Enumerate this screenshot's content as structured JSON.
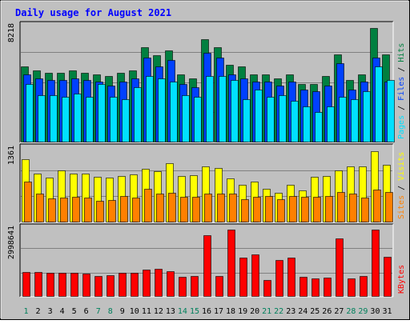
{
  "colors": {
    "background": "#C0C0C0",
    "title": "#0000FF",
    "grid": "#808080",
    "hits": "#008040",
    "files": "#0040FF",
    "pages": "#00E0FF",
    "visits": "#FFFF00",
    "sites": "#FF8000",
    "kbytes": "#FF0000",
    "weekday_label": "#000000",
    "weekend_label": "#00805C"
  },
  "chart_data": {
    "type": "bar",
    "title": "Daily usage for August 2021",
    "categories": [
      "1",
      "2",
      "3",
      "4",
      "5",
      "6",
      "7",
      "8",
      "9",
      "10",
      "11",
      "12",
      "13",
      "14",
      "15",
      "16",
      "17",
      "18",
      "19",
      "20",
      "21",
      "22",
      "23",
      "24",
      "25",
      "26",
      "27",
      "28",
      "29",
      "30",
      "31"
    ],
    "weekend_days": [
      "1",
      "7",
      "8",
      "14",
      "15",
      "21",
      "22",
      "28",
      "29"
    ],
    "grid": true,
    "panels": [
      {
        "id": "hits-files-pages",
        "ymax_label": "8218",
        "ylim": [
          0,
          8218
        ],
        "legend": {
          "names": [
            "Pages",
            "Files",
            "Hits"
          ],
          "separator": " / "
        },
        "series": [
          {
            "name": "Hits",
            "color_key": "hits",
            "values": [
              5230,
              4960,
              4830,
              4830,
              4960,
              4830,
              4700,
              4570,
              4830,
              4960,
              6620,
              6030,
              6360,
              4700,
              4440,
              7150,
              6620,
              5360,
              5230,
              4700,
              4700,
              4440,
              4700,
              4040,
              4040,
              4570,
              6090,
              4300,
              4700,
              7940,
              6090
            ]
          },
          {
            "name": "Files",
            "color_key": "files",
            "values": [
              4700,
              4430,
              4300,
              4300,
              4430,
              4300,
              4170,
              3910,
              4170,
              4430,
              5890,
              5230,
              5700,
              4040,
              3780,
              6230,
              5890,
              4700,
              4440,
              4170,
              4170,
              3910,
              4170,
              3650,
              3520,
              3910,
              5490,
              3650,
              4170,
              5890,
              4170
            ]
          },
          {
            "name": "Pages",
            "color_key": "pages",
            "values": [
              4040,
              3250,
              3250,
              3120,
              3380,
              3120,
              4040,
              3120,
              2990,
              3780,
              4570,
              4440,
              4170,
              3250,
              3120,
              4570,
              4570,
              4300,
              2990,
              3650,
              3120,
              3250,
              2870,
              2470,
              2080,
              2470,
              3120,
              2990,
              3520,
              5230,
              4300
            ]
          }
        ]
      },
      {
        "id": "visits-sites",
        "ymax_label": "1361",
        "ylim": [
          0,
          1361
        ],
        "legend": {
          "names": [
            "Sites",
            "Visits"
          ],
          "separator": " / "
        },
        "series": [
          {
            "name": "Visits",
            "color_key": "visits",
            "values": [
              1125,
              865,
              795,
              920,
              870,
              870,
              810,
              790,
              820,
              860,
              950,
              905,
              1060,
              825,
              835,
              1005,
              970,
              780,
              660,
              725,
              590,
              520,
              670,
              560,
              810,
              830,
              930,
              1005,
              1000,
              1275,
              1030
            ]
          },
          {
            "name": "Sites",
            "color_key": "sites",
            "values": [
              730,
              500,
              420,
              440,
              455,
              440,
              370,
              385,
              465,
              430,
              600,
              500,
              525,
              445,
              445,
              500,
              500,
              500,
              410,
              445,
              470,
              410,
              460,
              450,
              450,
              460,
              540,
              500,
              440,
              575,
              530
            ]
          }
        ]
      },
      {
        "id": "kbytes",
        "ymax_label": "2998641",
        "ylim": [
          0,
          2998641
        ],
        "legend": {
          "names": [
            "KBytes"
          ],
          "separator": ""
        },
        "series": [
          {
            "name": "KBytes",
            "color_key": "kbytes",
            "values": [
              1030000,
              1030000,
              1000000,
              1000000,
              1000000,
              960000,
              850000,
              900000,
              1000000,
              1000000,
              1140000,
              1180000,
              1060000,
              840000,
              850000,
              2620000,
              870000,
              2870000,
              1660000,
              1790000,
              700000,
              1560000,
              1660000,
              840000,
              760000,
              790000,
              2470000,
              770000,
              860000,
              2870000,
              1680000
            ]
          }
        ]
      }
    ]
  }
}
